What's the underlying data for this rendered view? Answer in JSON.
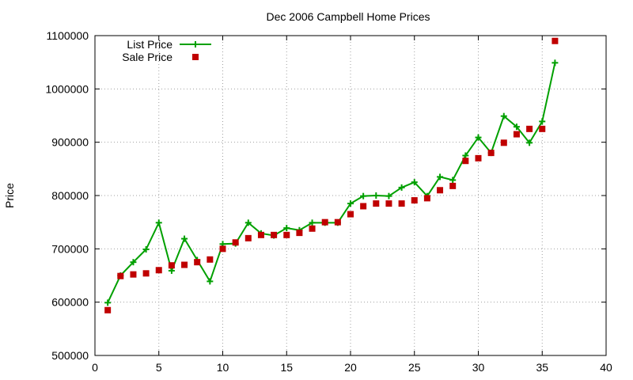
{
  "chart_data": {
    "type": "line",
    "title": "Dec 2006 Campbell Home Prices",
    "xlabel": "",
    "ylabel": "Price",
    "xlim": [
      0,
      40
    ],
    "ylim": [
      500000,
      1100000
    ],
    "xticks": [
      "0",
      "5",
      "10",
      "15",
      "20",
      "25",
      "30",
      "35",
      "40"
    ],
    "yticks": [
      "500000",
      "600000",
      "700000",
      "800000",
      "900000",
      "1000000",
      "1100000"
    ],
    "grid": true,
    "legend_position": "top-left",
    "series": [
      {
        "name": "List Price",
        "style": "line-points",
        "marker": "plus",
        "color": "#00a000",
        "x": [
          1,
          2,
          3,
          4,
          5,
          6,
          7,
          8,
          9,
          10,
          11,
          12,
          13,
          14,
          15,
          16,
          17,
          18,
          19,
          20,
          21,
          22,
          23,
          24,
          25,
          26,
          27,
          28,
          29,
          30,
          31,
          32,
          33,
          34,
          35,
          36
        ],
        "y": [
          599000,
          650000,
          675000,
          699000,
          749000,
          659000,
          719000,
          679000,
          639000,
          709000,
          710000,
          749000,
          729000,
          725000,
          739000,
          735000,
          749000,
          749000,
          749000,
          785000,
          799000,
          800000,
          799000,
          815000,
          825000,
          799000,
          835000,
          829000,
          875000,
          909000,
          880000,
          949000,
          929000,
          899000,
          939000,
          1049000
        ]
      },
      {
        "name": "Sale Price",
        "style": "points",
        "marker": "square",
        "color": "#c00000",
        "x": [
          1,
          2,
          3,
          4,
          5,
          6,
          7,
          8,
          9,
          10,
          11,
          12,
          13,
          14,
          15,
          16,
          17,
          18,
          19,
          20,
          21,
          22,
          23,
          24,
          25,
          26,
          27,
          28,
          29,
          30,
          31,
          32,
          33,
          34,
          35,
          36
        ],
        "y": [
          585000,
          649000,
          652000,
          654000,
          660000,
          669000,
          670000,
          675000,
          680000,
          700000,
          712000,
          720000,
          726000,
          726000,
          726000,
          730000,
          738000,
          750000,
          750000,
          765000,
          780000,
          785000,
          785000,
          785000,
          791000,
          795000,
          810000,
          818000,
          865000,
          870000,
          880000,
          899000,
          915000,
          925000,
          925000,
          1090000
        ]
      }
    ]
  }
}
